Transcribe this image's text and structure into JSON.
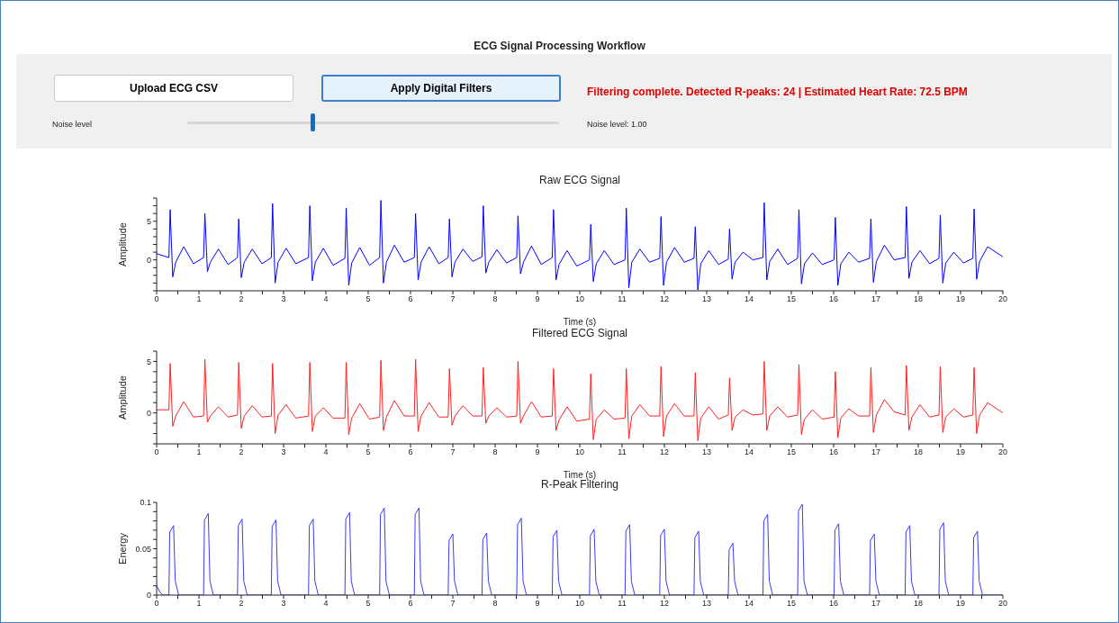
{
  "chart_data": [
    {
      "type": "other",
      "title": "ECG Signal Processing Workflow",
      "annotations": [
        "Upload ECG CSV",
        "Apply Digital Filters",
        "Filtering complete. Detected R-peaks: 24 | Estimated Heart Rate: 72.5 BPM",
        "Noise level",
        "Noise level: 1.00"
      ]
    },
    {
      "type": "line",
      "title": "Raw ECG Signal",
      "xlabel": "Time (s)",
      "ylabel": "Amplitude",
      "marker": "none",
      "xlim": [
        0,
        20
      ],
      "ylim": [
        -4,
        8
      ],
      "xticks": [
        0,
        {
          "value": 0.5,
          "label": null
        },
        1,
        {
          "value": 1.5,
          "label": null
        },
        2,
        {
          "value": 2.5,
          "label": null
        },
        3,
        {
          "value": 3.5,
          "label": null
        },
        4,
        {
          "value": 4.5,
          "label": null
        },
        5,
        {
          "value": 5.5,
          "label": null
        },
        6,
        {
          "value": 6.5,
          "label": null
        },
        7,
        {
          "value": 7.5,
          "label": null
        },
        8,
        {
          "value": 8.5,
          "label": null
        },
        9,
        {
          "value": 9.5,
          "label": null
        },
        10,
        {
          "value": 10.5,
          "label": null
        },
        11,
        {
          "value": 11.5,
          "label": null
        },
        12,
        {
          "value": 12.5,
          "label": null
        },
        13,
        {
          "value": 13.5,
          "label": null
        },
        14,
        {
          "value": 14.5,
          "label": null
        },
        15,
        {
          "value": 15.5,
          "label": null
        },
        16,
        {
          "value": 16.5,
          "label": null
        },
        17,
        {
          "value": 17.5,
          "label": null
        },
        18,
        {
          "value": 18.5,
          "label": null
        },
        19,
        {
          "value": 19.5,
          "label": null
        },
        20
      ],
      "yticks": [
        {
          "value": -4,
          "label": null
        },
        {
          "value": -3,
          "label": null
        },
        {
          "value": -2,
          "label": null
        },
        {
          "value": -1,
          "label": null
        },
        0,
        {
          "value": 1,
          "label": null
        },
        {
          "value": 2,
          "label": null
        },
        {
          "value": 3,
          "label": null
        },
        {
          "value": 4,
          "label": null
        },
        5,
        {
          "value": 6,
          "label": null
        },
        {
          "value": 7,
          "label": null
        },
        {
          "value": 8,
          "label": null
        }
      ],
      "series": [
        {
          "color": "#0000ff",
          "x": [
            0,
            0.29,
            0.32,
            0.38,
            0.45,
            0.64,
            0.87,
            1.11,
            1.14,
            1.2,
            1.27,
            1.46,
            1.69,
            1.91,
            1.94,
            2.0,
            2.07,
            2.26,
            2.49,
            2.71,
            2.74,
            2.8,
            2.87,
            3.06,
            3.29,
            3.59,
            3.62,
            3.68,
            3.75,
            3.94,
            4.17,
            4.45,
            4.48,
            4.54,
            4.61,
            4.8,
            5.03,
            5.27,
            5.3,
            5.36,
            5.43,
            5.62,
            5.85,
            6.09,
            6.12,
            6.18,
            6.25,
            6.44,
            6.67,
            6.89,
            6.92,
            6.98,
            7.05,
            7.24,
            7.47,
            7.69,
            7.72,
            7.78,
            7.85,
            8.04,
            8.27,
            8.51,
            8.54,
            8.6,
            8.67,
            8.86,
            9.09,
            9.35,
            9.38,
            9.44,
            9.51,
            9.7,
            9.93,
            10.23,
            10.26,
            10.32,
            10.39,
            10.58,
            10.81,
            11.07,
            11.1,
            11.16,
            11.23,
            11.42,
            11.65,
            11.89,
            11.92,
            11.98,
            12.05,
            12.24,
            12.47,
            12.7,
            12.73,
            12.79,
            12.86,
            13.05,
            13.28,
            13.51,
            13.54,
            13.6,
            13.67,
            13.86,
            14.09,
            14.33,
            14.36,
            14.42,
            14.49,
            14.68,
            14.91,
            15.15,
            15.18,
            15.24,
            15.31,
            15.5,
            15.73,
            16.01,
            16.04,
            16.1,
            16.17,
            16.36,
            16.59,
            16.85,
            16.88,
            16.94,
            17.01,
            17.2,
            17.43,
            17.69,
            17.72,
            17.78,
            17.85,
            18.04,
            18.27,
            18.49,
            18.52,
            18.58,
            18.65,
            18.84,
            19.07,
            19.29,
            19.32,
            19.38,
            19.45,
            19.64,
            20
          ],
          "values": [
            0.8,
            0.3,
            6.5,
            -2.2,
            -0.3,
            1.7,
            -0.5,
            0.3,
            6.0,
            -1.5,
            -0.3,
            1.4,
            -0.6,
            0.3,
            5.3,
            -2.3,
            -0.3,
            1.4,
            -0.5,
            0.3,
            7.3,
            -3.0,
            -0.3,
            1.5,
            -0.5,
            0.3,
            7.0,
            -2.7,
            -0.3,
            1.5,
            -0.7,
            0.2,
            6.7,
            -3.3,
            -0.4,
            1.6,
            -0.7,
            0.3,
            7.7,
            -3.0,
            -0.3,
            1.9,
            -0.3,
            0.3,
            6.0,
            -2.6,
            -0.3,
            1.7,
            -0.5,
            0.3,
            5.3,
            -2.2,
            -0.3,
            1.4,
            -0.2,
            0.4,
            7.0,
            -1.7,
            -0.3,
            1.3,
            -0.4,
            0.3,
            5.7,
            -1.8,
            -0.3,
            1.8,
            -0.6,
            0.3,
            6.5,
            -2.6,
            -0.6,
            1.2,
            -0.8,
            0.0,
            4.6,
            -2.8,
            -0.5,
            1.2,
            -0.6,
            0.0,
            6.7,
            -3.6,
            -0.3,
            1.4,
            -0.3,
            0.2,
            5.6,
            -3.3,
            -0.3,
            1.6,
            -0.3,
            0.2,
            4.3,
            -3.9,
            -0.5,
            1.2,
            -0.6,
            0.1,
            4.0,
            -2.5,
            -0.3,
            1.0,
            0.0,
            0.3,
            7.4,
            -2.6,
            -0.2,
            1.4,
            -0.6,
            0.2,
            6.5,
            -3.1,
            -0.5,
            0.9,
            -0.6,
            0.0,
            5.5,
            -3.3,
            -0.5,
            1.0,
            -0.3,
            0.2,
            5.3,
            -2.9,
            -0.2,
            1.9,
            0.0,
            0.3,
            6.9,
            -2.4,
            -0.3,
            1.2,
            -0.5,
            0.2,
            5.8,
            -3.0,
            -0.4,
            1.0,
            -0.4,
            0.2,
            6.6,
            -2.5,
            -0.2,
            1.7,
            0.4
          ]
        }
      ]
    },
    {
      "type": "line",
      "title": "Filtered ECG Signal",
      "xlabel": "Time (s)",
      "ylabel": "Amplitude",
      "marker": "none",
      "xlim": [
        0,
        20
      ],
      "ylim": [
        -3,
        6
      ],
      "xticks": [
        0,
        {
          "value": 0.5,
          "label": null
        },
        1,
        {
          "value": 1.5,
          "label": null
        },
        2,
        {
          "value": 2.5,
          "label": null
        },
        3,
        {
          "value": 3.5,
          "label": null
        },
        4,
        {
          "value": 4.5,
          "label": null
        },
        5,
        {
          "value": 5.5,
          "label": null
        },
        6,
        {
          "value": 6.5,
          "label": null
        },
        7,
        {
          "value": 7.5,
          "label": null
        },
        8,
        {
          "value": 8.5,
          "label": null
        },
        9,
        {
          "value": 9.5,
          "label": null
        },
        10,
        {
          "value": 10.5,
          "label": null
        },
        11,
        {
          "value": 11.5,
          "label": null
        },
        12,
        {
          "value": 12.5,
          "label": null
        },
        13,
        {
          "value": 13.5,
          "label": null
        },
        14,
        {
          "value": 14.5,
          "label": null
        },
        15,
        {
          "value": 15.5,
          "label": null
        },
        16,
        {
          "value": 16.5,
          "label": null
        },
        17,
        {
          "value": 17.5,
          "label": null
        },
        18,
        {
          "value": 18.5,
          "label": null
        },
        19,
        {
          "value": 19.5,
          "label": null
        },
        20
      ],
      "yticks": [
        {
          "value": -3,
          "label": null
        },
        {
          "value": -2,
          "label": null
        },
        {
          "value": -1,
          "label": null
        },
        0,
        {
          "value": 1,
          "label": null
        },
        {
          "value": 2,
          "label": null
        },
        {
          "value": 3,
          "label": null
        },
        {
          "value": 4,
          "label": null
        },
        5,
        {
          "value": 6,
          "label": null
        }
      ],
      "series": [
        {
          "color": "#ff2020",
          "x": [
            0,
            0.29,
            0.32,
            0.38,
            0.45,
            0.64,
            0.87,
            1.11,
            1.14,
            1.2,
            1.27,
            1.46,
            1.69,
            1.91,
            1.94,
            2.0,
            2.07,
            2.26,
            2.49,
            2.71,
            2.74,
            2.8,
            2.87,
            3.06,
            3.29,
            3.59,
            3.62,
            3.68,
            3.75,
            3.94,
            4.17,
            4.45,
            4.48,
            4.54,
            4.61,
            4.8,
            5.03,
            5.27,
            5.3,
            5.36,
            5.43,
            5.62,
            5.85,
            6.09,
            6.12,
            6.18,
            6.25,
            6.44,
            6.67,
            6.89,
            6.92,
            6.98,
            7.05,
            7.24,
            7.47,
            7.69,
            7.72,
            7.78,
            7.85,
            8.04,
            8.27,
            8.51,
            8.54,
            8.6,
            8.67,
            8.86,
            9.09,
            9.35,
            9.38,
            9.44,
            9.51,
            9.7,
            9.93,
            10.23,
            10.26,
            10.32,
            10.39,
            10.58,
            10.81,
            11.07,
            11.1,
            11.16,
            11.23,
            11.42,
            11.65,
            11.89,
            11.92,
            11.98,
            12.05,
            12.24,
            12.47,
            12.7,
            12.73,
            12.79,
            12.86,
            13.05,
            13.28,
            13.51,
            13.54,
            13.6,
            13.67,
            13.86,
            14.09,
            14.33,
            14.36,
            14.42,
            14.49,
            14.68,
            14.91,
            15.15,
            15.18,
            15.24,
            15.31,
            15.5,
            15.73,
            16.01,
            16.04,
            16.1,
            16.17,
            16.36,
            16.59,
            16.85,
            16.88,
            16.94,
            17.01,
            17.2,
            17.43,
            17.69,
            17.72,
            17.78,
            17.85,
            18.04,
            18.27,
            18.49,
            18.52,
            18.58,
            18.65,
            18.84,
            19.07,
            19.29,
            19.32,
            19.38,
            19.45,
            19.64,
            20
          ],
          "values": [
            0.3,
            0.3,
            4.8,
            -1.3,
            -0.3,
            1.1,
            -0.4,
            -0.3,
            5.2,
            -0.9,
            -0.3,
            0.6,
            -0.4,
            -0.2,
            4.9,
            -1.5,
            -0.3,
            0.7,
            -0.4,
            -0.3,
            4.8,
            -2.0,
            -0.2,
            0.8,
            -0.5,
            -0.3,
            4.9,
            -1.8,
            -0.3,
            0.5,
            -0.5,
            -0.5,
            4.9,
            -2.1,
            -0.5,
            0.9,
            -0.6,
            -0.4,
            5.1,
            -1.7,
            -0.4,
            1.2,
            -0.3,
            -0.3,
            5.2,
            -1.8,
            -0.3,
            1.0,
            -0.4,
            -0.4,
            4.3,
            -1.2,
            -0.3,
            0.7,
            -0.3,
            -0.3,
            4.4,
            -1.0,
            -0.3,
            0.5,
            -0.4,
            -0.3,
            5.0,
            -1.0,
            -0.3,
            1.1,
            -0.4,
            -0.3,
            4.3,
            -1.7,
            -0.7,
            0.6,
            -0.8,
            -0.6,
            3.8,
            -2.6,
            -0.6,
            0.3,
            -0.6,
            -0.5,
            4.3,
            -2.5,
            -0.3,
            0.8,
            -0.3,
            -0.3,
            4.5,
            -2.3,
            -0.3,
            0.9,
            -0.3,
            -0.3,
            3.9,
            -2.7,
            -0.5,
            0.6,
            -0.6,
            -0.2,
            3.4,
            -1.7,
            -0.4,
            0.3,
            -0.2,
            -0.1,
            5.0,
            -1.7,
            -0.3,
            0.6,
            -0.4,
            -0.2,
            4.7,
            -2.1,
            -0.6,
            0.3,
            -0.6,
            -0.4,
            4.0,
            -2.4,
            -0.5,
            0.4,
            -0.3,
            -0.3,
            4.4,
            -1.9,
            -0.2,
            1.3,
            0.1,
            -0.2,
            4.6,
            -1.7,
            -0.4,
            0.8,
            -0.4,
            -0.2,
            4.5,
            -1.9,
            -0.4,
            0.4,
            -0.4,
            -0.2,
            4.4,
            -2.0,
            -0.2,
            1.0,
            0.0
          ]
        }
      ]
    },
    {
      "type": "line",
      "title": "R-Peak Filtering",
      "ylabel": "Energy",
      "marker": "none",
      "xlim": [
        0,
        20
      ],
      "ylim": [
        0,
        0.1
      ],
      "xticks": [
        0,
        {
          "value": 0.5,
          "label": null
        },
        1,
        {
          "value": 1.5,
          "label": null
        },
        2,
        {
          "value": 2.5,
          "label": null
        },
        3,
        {
          "value": 3.5,
          "label": null
        },
        4,
        {
          "value": 4.5,
          "label": null
        },
        5,
        {
          "value": 5.5,
          "label": null
        },
        6,
        {
          "value": 6.5,
          "label": null
        },
        7,
        {
          "value": 7.5,
          "label": null
        },
        8,
        {
          "value": 8.5,
          "label": null
        },
        9,
        {
          "value": 9.5,
          "label": null
        },
        10,
        {
          "value": 10.5,
          "label": null
        },
        11,
        {
          "value": 11.5,
          "label": null
        },
        12,
        {
          "value": 12.5,
          "label": null
        },
        13,
        {
          "value": 13.5,
          "label": null
        },
        14,
        {
          "value": 14.5,
          "label": null
        },
        15,
        {
          "value": 15.5,
          "label": null
        },
        16,
        {
          "value": 16.5,
          "label": null
        },
        17,
        {
          "value": 17.5,
          "label": null
        },
        18,
        {
          "value": 18.5,
          "label": null
        },
        19,
        {
          "value": 19.5,
          "label": null
        },
        20
      ],
      "yticks": [
        0,
        {
          "value": 0.01,
          "label": null
        },
        {
          "value": 0.02,
          "label": null
        },
        {
          "value": 0.03,
          "label": null
        },
        {
          "value": 0.04,
          "label": null
        },
        0.05,
        {
          "value": 0.06,
          "label": null
        },
        {
          "value": 0.07,
          "label": null
        },
        {
          "value": 0.08,
          "label": null
        },
        {
          "value": 0.09,
          "label": null
        },
        0.1
      ],
      "series": [
        {
          "color": "#3b3bf5",
          "x": [
            0,
            0.08,
            0.15,
            0.29,
            0.31,
            0.4,
            0.44,
            0.52,
            1.11,
            1.13,
            1.22,
            1.26,
            1.34,
            1.91,
            1.93,
            2.02,
            2.06,
            2.14,
            2.71,
            2.73,
            2.82,
            2.86,
            2.94,
            3.59,
            3.61,
            3.7,
            3.74,
            3.82,
            4.45,
            4.47,
            4.56,
            4.6,
            4.68,
            5.27,
            5.29,
            5.38,
            5.42,
            5.5,
            6.09,
            6.11,
            6.2,
            6.24,
            6.32,
            6.89,
            6.91,
            7.0,
            7.04,
            7.12,
            7.69,
            7.71,
            7.8,
            7.84,
            7.92,
            8.51,
            8.53,
            8.62,
            8.66,
            8.74,
            9.35,
            9.37,
            9.46,
            9.5,
            9.58,
            10.23,
            10.25,
            10.34,
            10.38,
            10.46,
            11.07,
            11.09,
            11.18,
            11.22,
            11.3,
            11.89,
            11.91,
            12.0,
            12.04,
            12.12,
            12.7,
            12.72,
            12.81,
            12.85,
            12.93,
            13.51,
            13.53,
            13.62,
            13.66,
            13.74,
            14.33,
            14.35,
            14.44,
            14.48,
            14.56,
            15.15,
            15.17,
            15.26,
            15.3,
            15.38,
            16.01,
            16.03,
            16.12,
            16.16,
            16.24,
            16.85,
            16.87,
            16.96,
            17.0,
            17.08,
            17.69,
            17.71,
            17.8,
            17.84,
            17.92,
            18.49,
            18.51,
            18.6,
            18.64,
            18.72,
            19.29,
            19.31,
            19.4,
            19.44,
            19.52,
            20
          ],
          "values": [
            0.01,
            0.003,
            0,
            0,
            0.068,
            0.075,
            0.015,
            0,
            0,
            0.081,
            0.088,
            0.015,
            0,
            0,
            0.075,
            0.082,
            0.015,
            0,
            0,
            0.074,
            0.081,
            0.015,
            0,
            0,
            0.075,
            0.082,
            0.015,
            0,
            0,
            0.082,
            0.089,
            0.015,
            0,
            0,
            0.087,
            0.094,
            0.015,
            0,
            0,
            0.087,
            0.094,
            0.015,
            0,
            0,
            0.059,
            0.066,
            0.015,
            0,
            0,
            0.06,
            0.067,
            0.015,
            0,
            0,
            0.076,
            0.083,
            0.015,
            0,
            0,
            0.063,
            0.07,
            0.015,
            0,
            0,
            0.064,
            0.071,
            0.015,
            0,
            0,
            0.069,
            0.076,
            0.015,
            0,
            0,
            0.064,
            0.071,
            0.015,
            0,
            0,
            0.062,
            0.069,
            0.015,
            0,
            0,
            0.049,
            0.056,
            0.015,
            0,
            0,
            0.08,
            0.087,
            0.015,
            0,
            0,
            0.091,
            0.098,
            0.015,
            0,
            0,
            0.07,
            0.077,
            0.015,
            0,
            0,
            0.059,
            0.066,
            0.015,
            0,
            0,
            0.068,
            0.075,
            0.015,
            0,
            0,
            0.071,
            0.078,
            0.015,
            0,
            0,
            0.062,
            0.069,
            0.015,
            0,
            0
          ]
        }
      ]
    }
  ]
}
